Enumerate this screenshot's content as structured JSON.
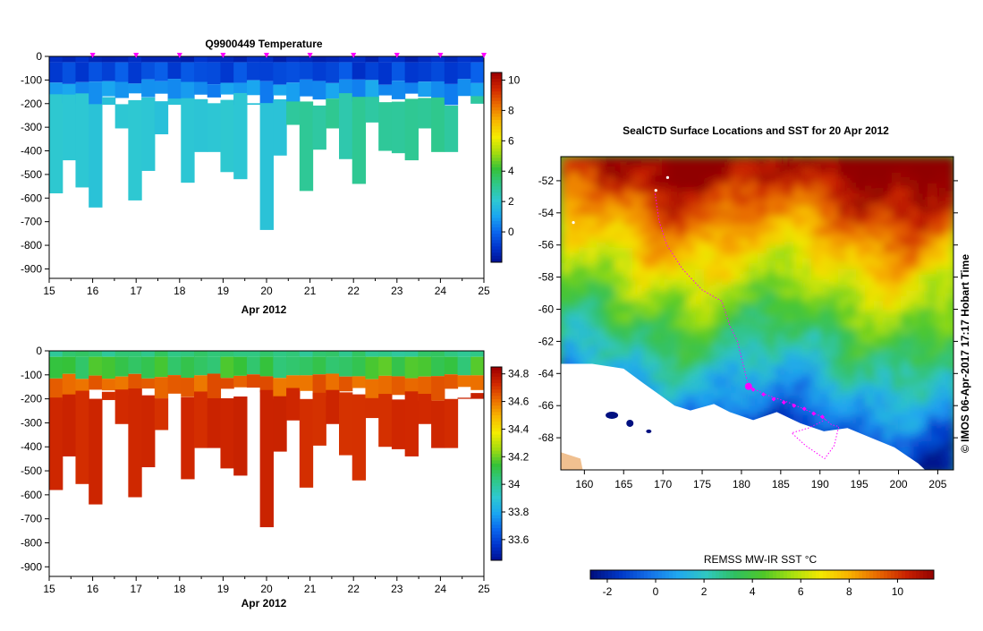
{
  "colors": {
    "depth_scale": [
      "#000c8c",
      "#0033cc",
      "#0a66ee",
      "#1aa6f0",
      "#2ec8d2",
      "#2fc88a",
      "#35c238",
      "#a4dc10",
      "#f4ec00",
      "#f8b800",
      "#ec7000",
      "#d22a00",
      "#a00000"
    ],
    "map_scale": [
      "#001080",
      "#0038c8",
      "#1470e8",
      "#20a8f0",
      "#30c8c0",
      "#30c060",
      "#50c828",
      "#a8e010",
      "#f4e800",
      "#f8b000",
      "#e86800",
      "#c82000",
      "#900000"
    ],
    "track": "#ff00ff",
    "land": "#ffffff",
    "australia_coast": "#f0c090",
    "frame": "#000000"
  },
  "chart_data": [
    {
      "type": "heatmap",
      "title": "Q9900449  Temperature",
      "xlabel": "Apr 2012",
      "xticks": [
        "15",
        "16",
        "17",
        "18",
        "19",
        "20",
        "21",
        "22",
        "23",
        "24",
        "25"
      ],
      "xlim": [
        15,
        25
      ],
      "ylim": [
        -940,
        0
      ],
      "yticks": [
        "0",
        "-100",
        "-200",
        "-300",
        "-400",
        "-500",
        "-600",
        "-700",
        "-800",
        "-900"
      ],
      "ytick_values": [
        0,
        -100,
        -200,
        -300,
        -400,
        -500,
        -600,
        -700,
        -800,
        -900
      ],
      "colorbar_ticks": [
        "10",
        "8",
        "6",
        "4",
        "2",
        "0"
      ],
      "colorbar_values": [
        10,
        8,
        6,
        4,
        2,
        0
      ],
      "colorbar_range": [
        -2,
        10.5
      ],
      "surface_value": 0.5,
      "subsurface_value": 1.5,
      "deep_value_early": 2.0,
      "deep_value_late": 3.0,
      "profile_markers_day": [
        16,
        17,
        18,
        19,
        20,
        21,
        22,
        23,
        24,
        25
      ],
      "profile_max_depth": [
        580,
        440,
        555,
        640,
        205,
        305,
        610,
        485,
        330,
        205,
        535,
        405,
        405,
        490,
        520,
        205,
        735,
        420,
        290,
        570,
        395,
        305,
        435,
        540,
        280,
        400,
        410,
        440,
        305,
        405,
        405,
        200,
        200
      ]
    },
    {
      "type": "heatmap",
      "title": "",
      "xlabel": "Apr 2012",
      "xticks": [
        "15",
        "16",
        "17",
        "18",
        "19",
        "20",
        "21",
        "22",
        "23",
        "24",
        "25"
      ],
      "xlim": [
        15,
        25
      ],
      "ylim": [
        -940,
        0
      ],
      "yticks": [
        "0",
        "-100",
        "-200",
        "-300",
        "-400",
        "-500",
        "-600",
        "-700",
        "-800",
        "-900"
      ],
      "ytick_values": [
        0,
        -100,
        -200,
        -300,
        -400,
        -500,
        -600,
        -700,
        -800,
        -900
      ],
      "colorbar_ticks": [
        "34.8",
        "34.6",
        "34.4",
        "34.2",
        "34",
        "33.8",
        "33.6"
      ],
      "colorbar_values": [
        34.8,
        34.6,
        34.4,
        34.2,
        34.0,
        33.8,
        33.6
      ],
      "colorbar_range": [
        33.45,
        34.85
      ],
      "surface_value": 34.15,
      "subsurface_value": 34.65,
      "deep_value": 34.74
    },
    {
      "type": "heatmap",
      "title": "SealCTD Surface Locations and SST for 20 Apr 2012",
      "xlabel": "",
      "xticks": [
        "160",
        "165",
        "170",
        "175",
        "180",
        "185",
        "190",
        "195",
        "200",
        "205"
      ],
      "xtick_values": [
        160,
        165,
        170,
        175,
        180,
        185,
        190,
        195,
        200,
        205
      ],
      "xlim": [
        157,
        207
      ],
      "yticks": [
        "-52",
        "-54",
        "-56",
        "-58",
        "-60",
        "-62",
        "-64",
        "-66",
        "-68"
      ],
      "ytick_values": [
        -52,
        -54,
        -56,
        -58,
        -60,
        -62,
        -64,
        -66,
        -68
      ],
      "ylim": [
        -70,
        -50.5
      ],
      "side_text": "© IMOS 06-Apr-2017 17:17 Hobart Time",
      "colorbar_label": "REMSS MW-IR SST °C",
      "colorbar_ticks": [
        "-2",
        "0",
        "2",
        "4",
        "6",
        "8",
        "10"
      ],
      "colorbar_values": [
        -2,
        0,
        2,
        4,
        6,
        8,
        10
      ],
      "colorbar_range": [
        -2.7,
        11.5
      ],
      "track_current": [
        180.9,
        -64.8
      ],
      "track_recent": [
        [
          181.5,
          -65.0
        ],
        [
          182.8,
          -65.3
        ],
        [
          184.1,
          -65.6
        ],
        [
          185.4,
          -65.8
        ],
        [
          186.7,
          -66.0
        ],
        [
          188.0,
          -66.2
        ],
        [
          189.2,
          -66.5
        ],
        [
          190.3,
          -66.7
        ]
      ],
      "track_path": [
        [
          169.0,
          -52.8
        ],
        [
          169.5,
          -54.5
        ],
        [
          170.5,
          -56.0
        ],
        [
          172.5,
          -57.5
        ],
        [
          175.0,
          -58.8
        ],
        [
          177.5,
          -59.5
        ],
        [
          178.5,
          -61.0
        ],
        [
          179.5,
          -62.0
        ],
        [
          180.0,
          -63.0
        ],
        [
          180.5,
          -64.0
        ],
        [
          180.9,
          -64.8
        ],
        [
          183.0,
          -65.3
        ],
        [
          186.0,
          -65.8
        ],
        [
          190.3,
          -66.7
        ],
        [
          191.5,
          -67.2
        ],
        [
          192.4,
          -67.3
        ],
        [
          191.8,
          -68.5
        ],
        [
          190.6,
          -69.3
        ],
        [
          188.2,
          -68.5
        ],
        [
          186.4,
          -67.7
        ],
        [
          188.5,
          -67.4
        ],
        [
          190.2,
          -67.0
        ],
        [
          190.8,
          -66.8
        ]
      ]
    }
  ]
}
